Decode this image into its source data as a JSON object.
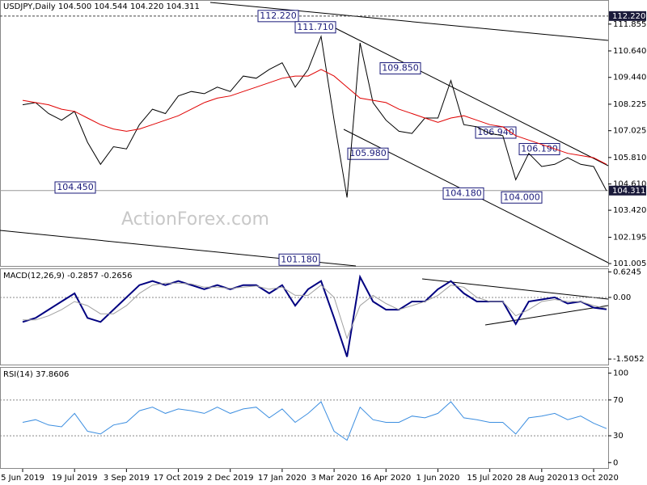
{
  "chart_data": [
    {
      "type": "line",
      "title": "USDJPY,Daily  104.500 104.544 104.220 104.311",
      "watermark": "ActionForex.com",
      "categories": [
        "5 Jun 2019",
        null,
        null,
        null,
        "19 Jul 2019",
        null,
        null,
        null,
        "3 Sep 2019",
        null,
        null,
        null,
        "17 Oct 2019",
        null,
        null,
        null,
        "2 Dec 2019",
        null,
        null,
        null,
        "17 Jan 2020",
        null,
        null,
        null,
        "3 Mar 2020",
        null,
        null,
        null,
        "16 Apr 2020",
        null,
        null,
        null,
        "1 Jun 2020",
        null,
        null,
        null,
        "15 Jul 2020",
        null,
        null,
        null,
        "28 Aug 2020",
        null,
        null,
        null,
        "13 Oct 2020",
        null
      ],
      "series": [
        {
          "color": "#000000",
          "values": [
            108.2,
            108.3,
            107.8,
            107.5,
            107.9,
            106.5,
            105.5,
            106.3,
            106.2,
            107.3,
            108.0,
            107.8,
            108.6,
            108.8,
            108.7,
            109.0,
            108.8,
            109.5,
            109.4,
            109.8,
            110.1,
            109.0,
            109.8,
            111.3,
            107.5,
            104.0,
            111.0,
            108.3,
            107.5,
            107.0,
            106.9,
            107.6,
            107.6,
            109.3,
            107.3,
            107.2,
            106.9,
            106.8,
            104.8,
            106.0,
            105.4,
            105.5,
            105.8,
            105.5,
            105.4,
            104.3
          ]
        },
        {
          "color": "#e00000",
          "values": [
            108.4,
            108.3,
            108.2,
            108.0,
            107.9,
            107.6,
            107.3,
            107.1,
            107.0,
            107.1,
            107.3,
            107.5,
            107.7,
            108.0,
            108.3,
            108.5,
            108.6,
            108.8,
            109.0,
            109.2,
            109.4,
            109.5,
            109.5,
            109.8,
            109.5,
            109.0,
            108.5,
            108.4,
            108.3,
            108.0,
            107.8,
            107.6,
            107.4,
            107.6,
            107.7,
            107.5,
            107.3,
            107.2,
            106.8,
            106.6,
            106.4,
            106.2,
            106.0,
            105.9,
            105.8,
            105.5
          ]
        }
      ],
      "ylim": [
        100.86,
        112.91
      ],
      "yticks": [
        111.855,
        {
          "value": 110.64,
          "label": "110.640"
        },
        {
          "value": 109.44,
          "label": "109.440"
        },
        108.225,
        107.025,
        {
          "value": 105.81,
          "label": "105.810"
        },
        {
          "value": 104.61,
          "label": "104.610"
        },
        {
          "value": 103.42,
          "label": "103.420"
        },
        102.195,
        101.005
      ],
      "markers": [
        {
          "value": 112.22,
          "label": "112.220"
        },
        {
          "value": 104.311,
          "label": "104.311"
        }
      ],
      "annotations": [
        {
          "value": 112.22,
          "label": "112.220"
        },
        {
          "value": 111.71,
          "label": "111.710"
        },
        {
          "value": 109.85,
          "label": "109.850"
        },
        {
          "value": 104.45,
          "label": "104.450"
        },
        {
          "value": 105.98,
          "label": "105.980"
        },
        {
          "value": 106.94,
          "label": "106.940"
        },
        {
          "value": 106.19,
          "label": "106.190"
        },
        {
          "value": 104.18,
          "label": "104.180"
        },
        {
          "value": 104.0,
          "label": "104.000"
        },
        {
          "value": 101.18,
          "label": "101.180"
        }
      ]
    },
    {
      "type": "line",
      "title": "MACD(12,26,9) -0.2857 -0.2656",
      "series": [
        {
          "color": "#000080",
          "values": [
            -0.6,
            -0.5,
            -0.3,
            -0.1,
            0.1,
            -0.5,
            -0.6,
            -0.3,
            0.0,
            0.3,
            0.4,
            0.3,
            0.4,
            0.3,
            0.2,
            0.3,
            0.2,
            0.3,
            0.3,
            0.1,
            0.3,
            -0.2,
            0.2,
            0.4,
            -0.5,
            -1.45,
            0.5,
            -0.1,
            -0.3,
            -0.3,
            -0.1,
            -0.1,
            0.2,
            0.4,
            0.1,
            -0.1,
            -0.1,
            -0.1,
            -0.65,
            -0.1,
            -0.05,
            0.0,
            -0.15,
            -0.1,
            -0.25,
            -0.29
          ]
        },
        {
          "color": "#a0a0a0",
          "values": [
            -0.55,
            -0.55,
            -0.45,
            -0.3,
            -0.1,
            -0.2,
            -0.4,
            -0.4,
            -0.2,
            0.1,
            0.3,
            0.35,
            0.35,
            0.33,
            0.25,
            0.25,
            0.22,
            0.25,
            0.28,
            0.2,
            0.25,
            0.05,
            0.05,
            0.3,
            0.0,
            -1.0,
            -0.2,
            0.05,
            -0.15,
            -0.3,
            -0.2,
            -0.1,
            0.05,
            0.3,
            0.25,
            0.0,
            -0.1,
            -0.1,
            -0.45,
            -0.3,
            -0.1,
            -0.05,
            -0.1,
            -0.1,
            -0.2,
            -0.27
          ]
        }
      ],
      "ylim": [
        -1.66,
        0.69
      ],
      "yticks": [
        0.6245,
        {
          "value": 0,
          "label": "0.00"
        },
        -1.5052
      ]
    },
    {
      "type": "line",
      "title": "RSI(14) 37.8606",
      "series": [
        {
          "color": "#3c8ee0",
          "values": [
            45,
            48,
            42,
            40,
            55,
            35,
            32,
            42,
            45,
            58,
            62,
            55,
            60,
            58,
            55,
            62,
            55,
            60,
            62,
            50,
            60,
            45,
            55,
            68,
            35,
            25,
            62,
            48,
            45,
            45,
            52,
            50,
            55,
            68,
            50,
            48,
            45,
            45,
            32,
            50,
            52,
            55,
            48,
            52,
            44,
            38
          ]
        }
      ],
      "ylim": [
        -7,
        106
      ],
      "yticks": [
        100,
        70,
        30,
        0
      ],
      "levels": [
        70,
        30
      ]
    }
  ]
}
